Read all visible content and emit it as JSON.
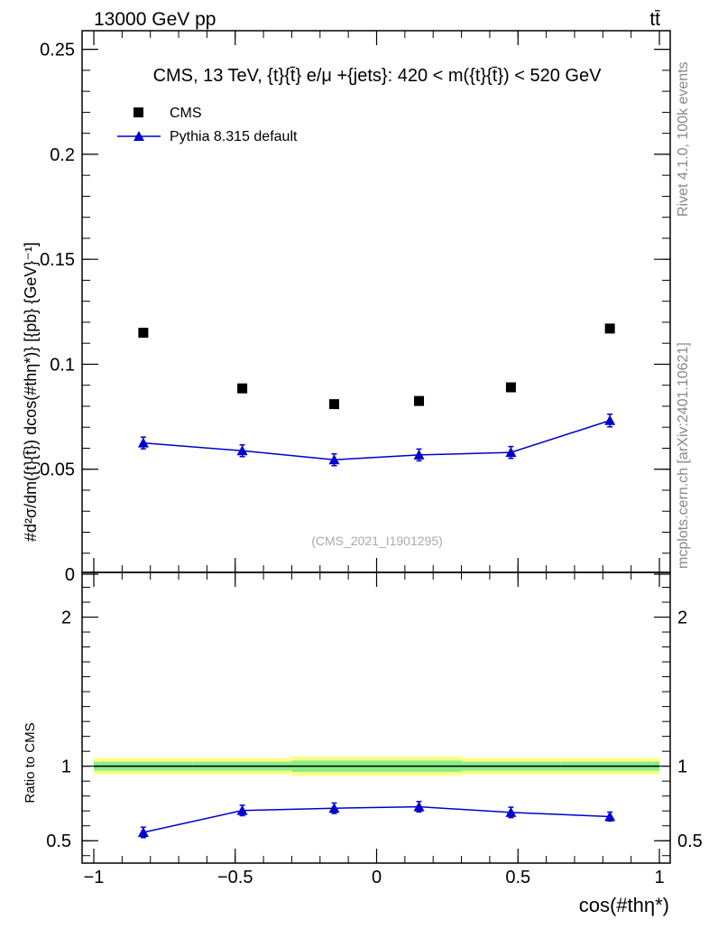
{
  "header": {
    "energy_label": "13000 GeV pp",
    "process_label": "tt̄"
  },
  "side_labels": {
    "rivet": "Rivet 4.1.0,  100k events",
    "mcplots": "mcplots.cern.ch [arXiv:2401.10621]"
  },
  "chart_data": [
    {
      "type": "scatter",
      "panel": "main",
      "title": "CMS, 13 TeV, {t}{t̄} e/μ +{jets}: 420 < m({t}{t̄}) < 520 GeV",
      "xlabel": "cos(#thη*)",
      "ylabel": "#d²σ/dm({t}{t̄}) dcos(#thη*)} [{pb} {GeV}⁻¹]",
      "watermark": "(CMS_2021_I1901295)",
      "xlim": [
        -1,
        1
      ],
      "ylim": [
        0,
        0.255
      ],
      "yticks": [
        0,
        0.05,
        0.1,
        0.15,
        0.2,
        0.25
      ],
      "ytick_labels": [
        "0",
        "0.05",
        "0.1",
        "0.15",
        "0.2",
        "0.25"
      ],
      "legend_position": "top-left",
      "x_bin_edges": [
        -1,
        -0.65,
        -0.3,
        0,
        0.3,
        0.65,
        1
      ],
      "series": [
        {
          "name": "CMS",
          "marker": "square",
          "color": "#000000",
          "x": [
            -0.825,
            -0.475,
            -0.15,
            0.15,
            0.475,
            0.825
          ],
          "values": [
            0.115,
            0.0885,
            0.081,
            0.0825,
            0.089,
            0.117
          ]
        },
        {
          "name": "Pythia 8.315 default",
          "marker": "triangle",
          "color": "#0000cc",
          "x": [
            -0.825,
            -0.475,
            -0.15,
            0.15,
            0.475,
            0.825
          ],
          "values": [
            0.0625,
            0.0588,
            0.0545,
            0.0568,
            0.058,
            0.0732
          ],
          "errors": [
            0.0028,
            0.0028,
            0.0028,
            0.0028,
            0.0028,
            0.003
          ]
        }
      ]
    },
    {
      "type": "line",
      "panel": "ratio",
      "ylabel": "Ratio to CMS",
      "xlabel": "cos(#thη*)",
      "xlim": [
        -1,
        1
      ],
      "ylim": [
        0.35,
        2.3
      ],
      "yticks": [
        0.5,
        1,
        2
      ],
      "ytick_labels": [
        "0.5",
        "1",
        "2"
      ],
      "xticks": [
        -1,
        -0.5,
        0,
        0.5,
        1
      ],
      "xtick_labels": [
        "−1",
        "−0.5",
        "0",
        "0.5",
        "1"
      ],
      "reference_line": 1,
      "bands": {
        "x_bin_edges": [
          -1,
          -0.65,
          -0.3,
          0,
          0.3,
          0.65,
          1
        ],
        "outer": [
          0.055,
          0.055,
          0.065,
          0.065,
          0.055,
          0.055
        ],
        "inner": [
          0.03,
          0.03,
          0.038,
          0.038,
          0.03,
          0.03
        ],
        "outer_color": "#ffff88",
        "inner_color": "#88ee88"
      },
      "series": [
        {
          "name": "Pythia 8.315 default",
          "color": "#0000cc",
          "x": [
            -0.825,
            -0.475,
            -0.15,
            0.15,
            0.475,
            0.825
          ],
          "values": [
            0.556,
            0.703,
            0.718,
            0.728,
            0.69,
            0.662
          ],
          "errors": [
            0.035,
            0.035,
            0.035,
            0.035,
            0.035,
            0.03
          ]
        }
      ]
    }
  ]
}
